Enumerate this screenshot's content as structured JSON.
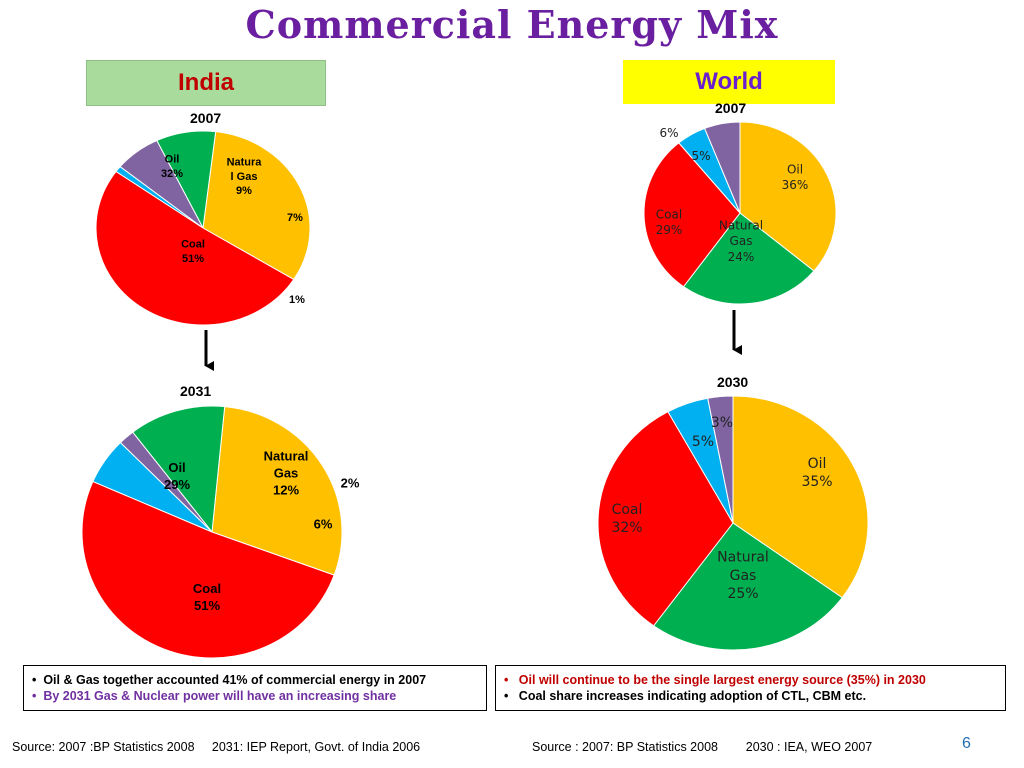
{
  "title": "Commercial Energy Mix",
  "regions": {
    "india": "India",
    "world": "World"
  },
  "years": {
    "india_top": "2007",
    "india_bottom": "2031",
    "world_top": "2007",
    "world_bottom": "2030"
  },
  "colors": {
    "oil": "#ffc000",
    "gas": "#00b050",
    "nuclear": "#8064a2",
    "hydro": "#00b0f0",
    "coal": "#ff0000"
  },
  "chart_data": [
    {
      "type": "pie",
      "title": "2007",
      "region": "India",
      "slices": [
        {
          "label": "Oil",
          "value": 32,
          "display": "32%",
          "color": "#ffc000"
        },
        {
          "label": "Natura l Gas",
          "value": 9,
          "display": "9%",
          "color": "#00b050"
        },
        {
          "label": "",
          "value": 7,
          "display": "7%",
          "color": "#8064a2"
        },
        {
          "label": "",
          "value": 1,
          "display": "1%",
          "color": "#00b0f0"
        },
        {
          "label": "Coal",
          "value": 51,
          "display": "51%",
          "color": "#ff0000"
        }
      ]
    },
    {
      "type": "pie",
      "title": "2031",
      "region": "India",
      "slices": [
        {
          "label": "Oil",
          "value": 29,
          "display": "29%",
          "color": "#ffc000"
        },
        {
          "label": "Natural Gas",
          "value": 12,
          "display": "12%",
          "color": "#00b050"
        },
        {
          "label": "",
          "value": 2,
          "display": "2%",
          "color": "#8064a2"
        },
        {
          "label": "",
          "value": 6,
          "display": "6%",
          "color": "#00b0f0"
        },
        {
          "label": "Coal",
          "value": 51,
          "display": "51%",
          "color": "#ff0000"
        }
      ]
    },
    {
      "type": "pie",
      "title": "2007",
      "region": "World",
      "slices": [
        {
          "label": "Oil",
          "value": 36,
          "display": "36%",
          "color": "#ffc000"
        },
        {
          "label": "Natural Gas",
          "value": 24,
          "display": "24%",
          "color": "#00b050"
        },
        {
          "label": "Coal",
          "value": 29,
          "display": "29%",
          "color": "#ff0000"
        },
        {
          "label": "",
          "value": 5,
          "display": "5%",
          "color": "#00b0f0"
        },
        {
          "label": "",
          "value": 6,
          "display": "6%",
          "color": "#8064a2"
        }
      ]
    },
    {
      "type": "pie",
      "title": "2030",
      "region": "World",
      "slices": [
        {
          "label": "Oil",
          "value": 35,
          "display": "35%",
          "color": "#ffc000"
        },
        {
          "label": "Natural Gas",
          "value": 25,
          "display": "25%",
          "color": "#00b050"
        },
        {
          "label": "Coal",
          "value": 32,
          "display": "32%",
          "color": "#ff0000"
        },
        {
          "label": "",
          "value": 5,
          "display": "5%",
          "color": "#00b0f0"
        },
        {
          "label": "",
          "value": 3,
          "display": "3%",
          "color": "#8064a2"
        }
      ]
    }
  ],
  "notes": {
    "india": [
      {
        "text": "Oil & Gas together accounted 41% of commercial energy in 2007",
        "color": "#000000"
      },
      {
        "text": "By 2031  Gas & Nuclear power will have an increasing share",
        "color": "#7030a0"
      }
    ],
    "world": [
      {
        "text": "Oil will continue to be the single largest energy source (35%) in 2030",
        "color": "#c00000"
      },
      {
        "text": "Coal share increases indicating adoption of  CTL, CBM etc.",
        "color": "#000000"
      }
    ]
  },
  "sources": {
    "india": "Source: 2007 :BP Statistics 2008     2031: IEP Report, Govt. of India 2006",
    "world": "Source : 2007: BP Statistics 2008        2030 : IEA, WEO 2007"
  },
  "page_number": "6"
}
